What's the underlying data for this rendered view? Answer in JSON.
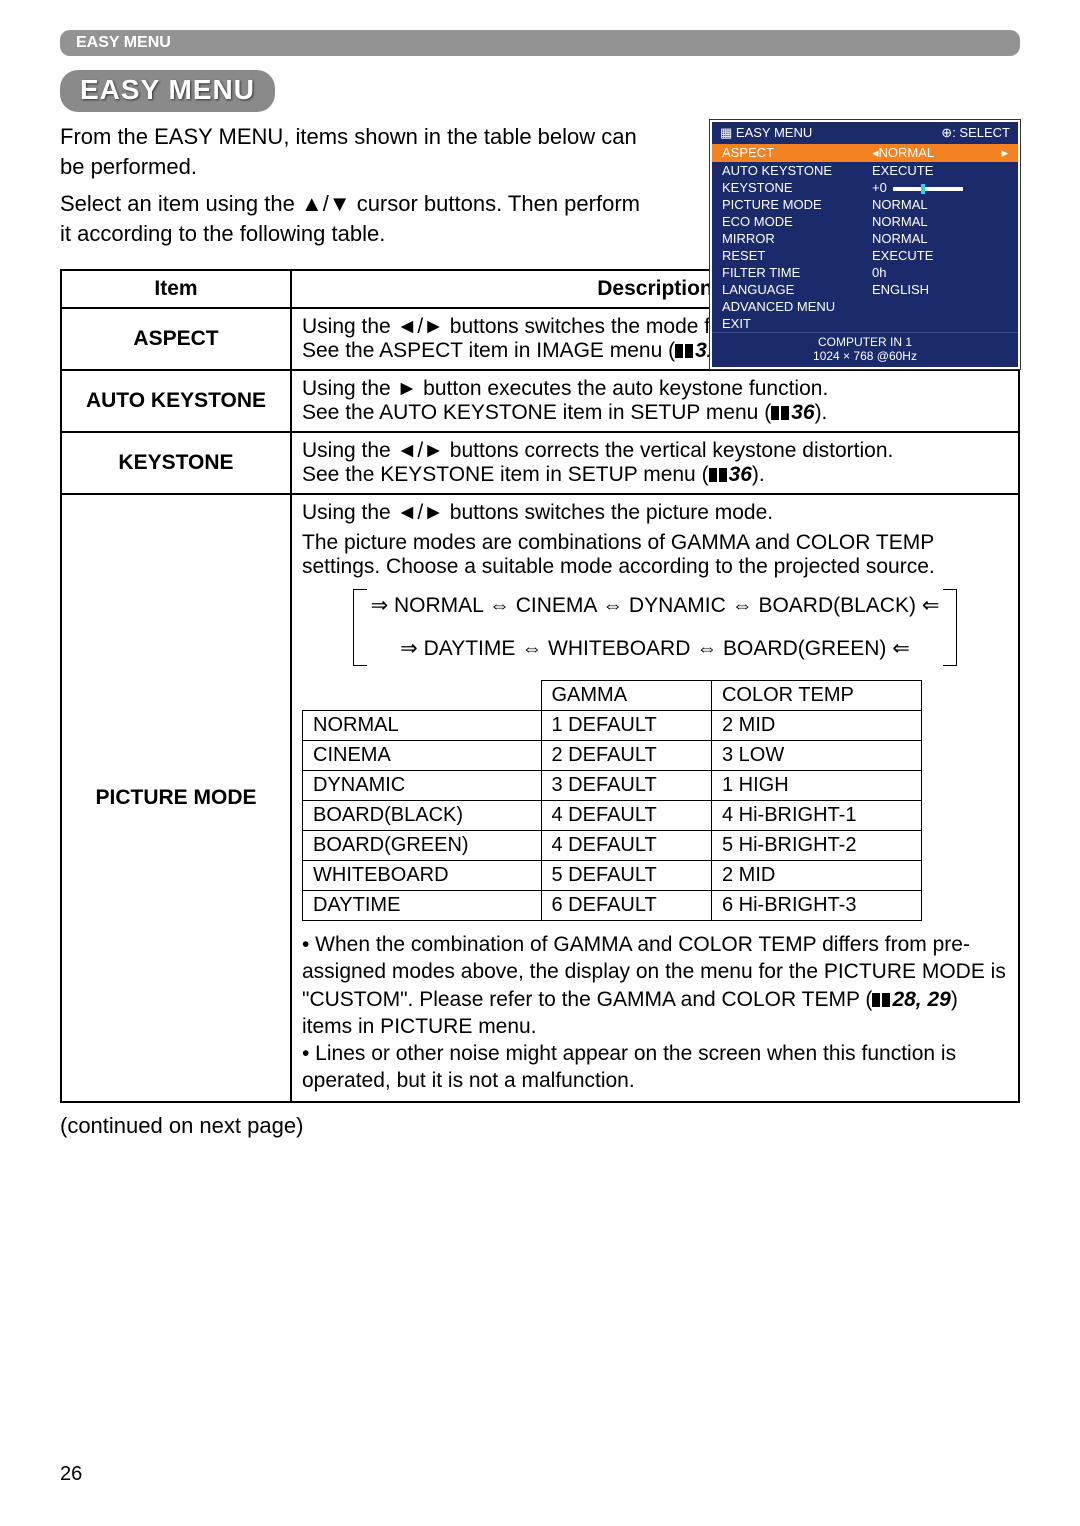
{
  "header_bar": "EASY MENU",
  "pill_title": "EASY MENU",
  "intro_p1": "From the EASY MENU, items shown in the table below can be performed.",
  "intro_p2": "Select an item using the ▲/▼ cursor buttons. Then perform it according to the following table.",
  "osd": {
    "top_left": "EASY MENU",
    "top_right": "⊕: SELECT",
    "rows": [
      {
        "label": "ASPECT",
        "value": "◂NORMAL",
        "highlight": true,
        "tail": "▸"
      },
      {
        "label": "AUTO KEYSTONE",
        "value": "EXECUTE"
      },
      {
        "label": "KEYSTONE",
        "value": "+0",
        "slider": true
      },
      {
        "label": "PICTURE MODE",
        "value": "NORMAL"
      },
      {
        "label": "ECO MODE",
        "value": "NORMAL"
      },
      {
        "label": "MIRROR",
        "value": "NORMAL"
      },
      {
        "label": "RESET",
        "value": "EXECUTE"
      },
      {
        "label": "FILTER TIME",
        "value": "0h"
      },
      {
        "label": "LANGUAGE",
        "value": "ENGLISH"
      },
      {
        "label": "ADVANCED MENU",
        "value": ""
      },
      {
        "label": "EXIT",
        "value": ""
      }
    ],
    "footer_l1": "COMPUTER IN 1",
    "footer_l2": "1024 × 768 @60Hz"
  },
  "table": {
    "head_item": "Item",
    "head_desc": "Description",
    "aspect": {
      "item": "ASPECT",
      "desc": "Using the ◄/► buttons switches the mode for aspect ratio.\nSee the ASPECT item in IMAGE menu (",
      "ref": "31",
      "tail": ")."
    },
    "autokey": {
      "item": "AUTO KEYSTONE",
      "desc": "Using the ► button executes the auto keystone function.\nSee the AUTO KEYSTONE item in SETUP menu (",
      "ref": "36",
      "tail": ")."
    },
    "keystone": {
      "item": "KEYSTONE",
      "desc": "Using the ◄/► buttons corrects the vertical keystone distortion.\nSee the KEYSTONE item in SETUP menu (",
      "ref": "36",
      "tail": ")."
    },
    "picture": {
      "item": "PICTURE MODE",
      "p1": "Using the ◄/► buttons switches the picture mode.",
      "p2": "The picture modes are combinations of GAMMA and COLOR TEMP settings. Choose a suitable mode according to the projected source.",
      "cycle_top": "NORMAL ⇔ CINEMA ⇔ DYNAMIC ⇔ BOARD(BLACK)",
      "cycle_bottom": "DAYTIME ⇔ WHITEBOARD ⇔ BOARD(GREEN)",
      "inner_head": [
        "",
        "GAMMA",
        "COLOR TEMP"
      ],
      "inner_rows": [
        [
          "NORMAL",
          "1 DEFAULT",
          "2 MID"
        ],
        [
          "CINEMA",
          "2 DEFAULT",
          "3 LOW"
        ],
        [
          "DYNAMIC",
          "3 DEFAULT",
          "1 HIGH"
        ],
        [
          "BOARD(BLACK)",
          "4 DEFAULT",
          "4 Hi-BRIGHT-1"
        ],
        [
          "BOARD(GREEN)",
          "4 DEFAULT",
          "5 Hi-BRIGHT-2"
        ],
        [
          "WHITEBOARD",
          "5 DEFAULT",
          "2 MID"
        ],
        [
          "DAYTIME",
          "6 DEFAULT",
          "6 Hi-BRIGHT-3"
        ]
      ],
      "note1a": "• When the combination of GAMMA and COLOR TEMP differs from pre-assigned modes above, the display on the menu for the PICTURE MODE is \"CUSTOM\". Please refer to the GAMMA and COLOR TEMP (",
      "note1_ref": "28, 29",
      "note1b": ") items in PICTURE menu.",
      "note2": "• Lines or other noise might appear on the screen when this function is operated, but it is not a malfunction."
    }
  },
  "continued": "(continued on next page)",
  "page_num": "26"
}
